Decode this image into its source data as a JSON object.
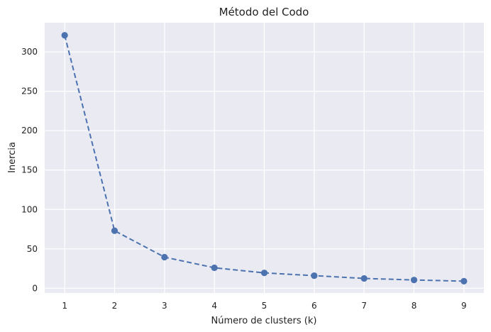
{
  "chart_data": {
    "type": "line",
    "title": "Método del Codo",
    "xlabel": "Número de clusters (k)",
    "ylabel": "Inercia",
    "x": [
      1,
      2,
      3,
      4,
      5,
      6,
      7,
      8,
      9
    ],
    "series": [
      {
        "name": "Inercia",
        "values": [
          321,
          73,
          39.5,
          26,
          19.5,
          16,
          12.5,
          10.5,
          9
        ],
        "color": "#4c72b0",
        "line_style": "dashed",
        "marker": "circle"
      }
    ],
    "xticks": [
      "1",
      "2",
      "3",
      "4",
      "5",
      "6",
      "7",
      "8",
      "9"
    ],
    "yticks": [
      "0",
      "50",
      "100",
      "150",
      "200",
      "250",
      "300"
    ],
    "ytick_values": [
      0,
      50,
      100,
      150,
      200,
      250,
      300
    ],
    "xlim": [
      0.6,
      9.4
    ],
    "ylim": [
      -6,
      337
    ],
    "grid": true,
    "background": "#eaeaf2"
  }
}
